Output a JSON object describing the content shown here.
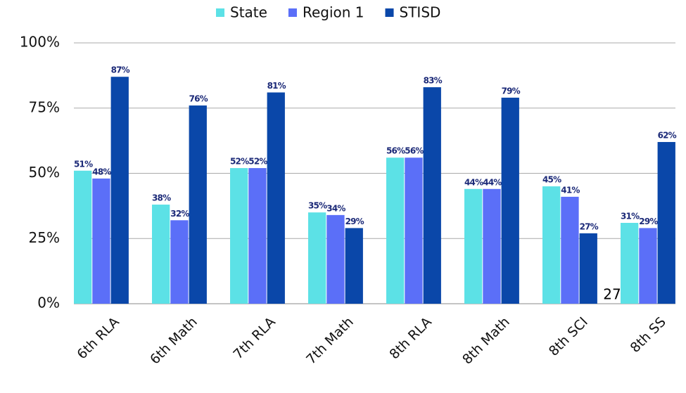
{
  "chart_data": {
    "type": "bar",
    "categories": [
      "6th RLA",
      "6th Math",
      "7th RLA",
      "7th Math",
      "8th RLA",
      "8th Math",
      "8th SCI",
      "8th SS"
    ],
    "series": [
      {
        "name": "State",
        "color": "#5ce1e6",
        "values": [
          51,
          38,
          52,
          35,
          56,
          44,
          45,
          31
        ],
        "value_labels": [
          "51%",
          "38%",
          "52%",
          "35%",
          "56%",
          "44%",
          "45%",
          "31%"
        ]
      },
      {
        "name": "Region 1",
        "color": "#5b6ff8",
        "values": [
          48,
          32,
          52,
          34,
          56,
          44,
          41,
          29
        ],
        "value_labels": [
          "48%",
          "32%",
          "52%",
          "34%",
          "56%",
          "44%",
          "41%",
          "29%"
        ]
      },
      {
        "name": "STISD",
        "color": "#0a47a9",
        "values": [
          87,
          76,
          81,
          29,
          83,
          79,
          27,
          62
        ],
        "value_labels": [
          "87%",
          "76%",
          "81%",
          "29%",
          "83%",
          "79%",
          "27%",
          "62%"
        ]
      }
    ],
    "ylim": [
      0,
      100
    ],
    "yticks": [
      {
        "value": 0,
        "label": "0%"
      },
      {
        "value": 25,
        "label": "25%"
      },
      {
        "value": 50,
        "label": "50%"
      },
      {
        "value": 75,
        "label": "75%"
      },
      {
        "value": 100,
        "label": "100%"
      }
    ],
    "grid": true,
    "legend": "top",
    "annotation": "27"
  }
}
